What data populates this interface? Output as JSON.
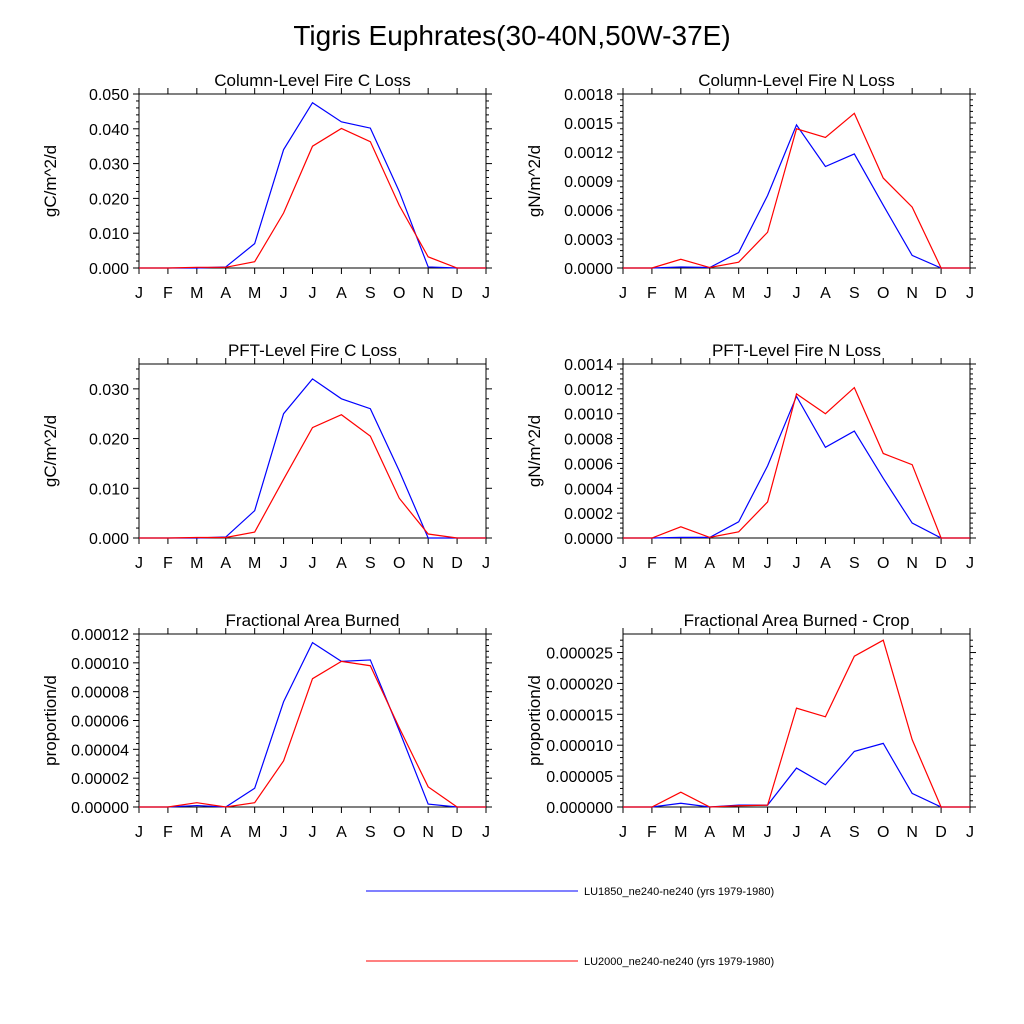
{
  "title": "Tigris Euphrates(30-40N,50W-37E)",
  "chart_data": [
    {
      "type": "line",
      "title": "Column-Level Fire C Loss",
      "ylabel": "gC/m^2/d",
      "categories": [
        "J",
        "F",
        "M",
        "A",
        "M",
        "J",
        "J",
        "A",
        "S",
        "O",
        "N",
        "D",
        "J"
      ],
      "ylim": [
        0,
        0.05
      ],
      "yticks": [
        0,
        0.01,
        0.02,
        0.03,
        0.04,
        0.05
      ],
      "ytick_labels": [
        "0.000",
        "0.010",
        "0.020",
        "0.030",
        "0.040",
        "0.050"
      ],
      "series": [
        {
          "name": "LU1850_ne240-ne240 (yrs 1979-1980)",
          "color": "#0000ff",
          "values": [
            0,
            0,
            0,
            0.0003,
            0.007,
            0.034,
            0.0475,
            0.042,
            0.0402,
            0.022,
            0.0003,
            0,
            0
          ]
        },
        {
          "name": "LU2000_ne240-ne240 (yrs 1979-1980)",
          "color": "#ff0000",
          "values": [
            0,
            0,
            0.0002,
            0.0002,
            0.0018,
            0.0158,
            0.035,
            0.0401,
            0.0363,
            0.018,
            0.0032,
            0,
            0
          ]
        }
      ]
    },
    {
      "type": "line",
      "title": "Column-Level Fire N Loss",
      "ylabel": "gN/m^2/d",
      "categories": [
        "J",
        "F",
        "M",
        "A",
        "M",
        "J",
        "J",
        "A",
        "S",
        "O",
        "N",
        "D",
        "J"
      ],
      "ylim": [
        0,
        0.0018
      ],
      "yticks": [
        0,
        0.0003,
        0.0006,
        0.0009,
        0.0012,
        0.0015,
        0.0018
      ],
      "ytick_labels": [
        "0.0000",
        "0.0003",
        "0.0006",
        "0.0009",
        "0.0012",
        "0.0015",
        "0.0018"
      ],
      "series": [
        {
          "name": "LU1850_ne240-ne240 (yrs 1979-1980)",
          "color": "#0000ff",
          "values": [
            0,
            0,
            1e-05,
            5e-06,
            0.00016,
            0.00075,
            0.00148,
            0.00105,
            0.00118,
            0.00065,
            0.00013,
            0,
            0
          ]
        },
        {
          "name": "LU2000_ne240-ne240 (yrs 1979-1980)",
          "color": "#ff0000",
          "values": [
            0,
            0,
            9e-05,
            5e-06,
            6e-05,
            0.00037,
            0.00144,
            0.00135,
            0.0016,
            0.00093,
            0.00063,
            0,
            0
          ]
        }
      ]
    },
    {
      "type": "line",
      "title": "PFT-Level Fire C Loss",
      "ylabel": "gC/m^2/d",
      "categories": [
        "J",
        "F",
        "M",
        "A",
        "M",
        "J",
        "J",
        "A",
        "S",
        "O",
        "N",
        "D",
        "J"
      ],
      "ylim": [
        0,
        0.035
      ],
      "yticks": [
        0,
        0.01,
        0.02,
        0.03
      ],
      "ytick_labels": [
        "0.000",
        "0.010",
        "0.020",
        "0.030"
      ],
      "series": [
        {
          "name": "LU1850_ne240-ne240 (yrs 1979-1980)",
          "color": "#0000ff",
          "values": [
            0,
            0,
            0,
            0.0002,
            0.0055,
            0.025,
            0.032,
            0.028,
            0.026,
            0.0135,
            0,
            0,
            0
          ]
        },
        {
          "name": "LU2000_ne240-ne240 (yrs 1979-1980)",
          "color": "#ff0000",
          "values": [
            0,
            0,
            0.0001,
            0.0001,
            0.0012,
            0.0118,
            0.0222,
            0.0248,
            0.0205,
            0.008,
            0.0008,
            0,
            0
          ]
        }
      ]
    },
    {
      "type": "line",
      "title": "PFT-Level Fire N Loss",
      "ylabel": "gN/m^2/d",
      "categories": [
        "J",
        "F",
        "M",
        "A",
        "M",
        "J",
        "J",
        "A",
        "S",
        "O",
        "N",
        "D",
        "J"
      ],
      "ylim": [
        0,
        0.0014
      ],
      "yticks": [
        0,
        0.0002,
        0.0004,
        0.0006,
        0.0008,
        0.001,
        0.0012,
        0.0014
      ],
      "ytick_labels": [
        "0.0000",
        "0.0002",
        "0.0004",
        "0.0006",
        "0.0008",
        "0.0010",
        "0.0012",
        "0.0014"
      ],
      "series": [
        {
          "name": "LU1850_ne240-ne240 (yrs 1979-1980)",
          "color": "#0000ff",
          "values": [
            0,
            0,
            5e-06,
            5e-06,
            0.00013,
            0.00058,
            0.00114,
            0.00073,
            0.00086,
            0.00048,
            0.00012,
            0,
            0
          ]
        },
        {
          "name": "LU2000_ne240-ne240 (yrs 1979-1980)",
          "color": "#ff0000",
          "values": [
            0,
            0,
            9e-05,
            5e-06,
            5e-05,
            0.00029,
            0.00116,
            0.001,
            0.00121,
            0.00068,
            0.00059,
            0,
            0
          ]
        }
      ]
    },
    {
      "type": "line",
      "title": "Fractional Area Burned",
      "ylabel": "proportion/d",
      "categories": [
        "J",
        "F",
        "M",
        "A",
        "M",
        "J",
        "J",
        "A",
        "S",
        "O",
        "N",
        "D",
        "J"
      ],
      "ylim": [
        0,
        0.00012
      ],
      "yticks": [
        0,
        2e-05,
        4e-05,
        6e-05,
        8e-05,
        0.0001,
        0.00012
      ],
      "ytick_labels": [
        "0.00000",
        "0.00002",
        "0.00004",
        "0.00006",
        "0.00008",
        "0.00010",
        "0.00012"
      ],
      "series": [
        {
          "name": "LU1850_ne240-ne240 (yrs 1979-1980)",
          "color": "#0000ff",
          "values": [
            0,
            0,
            1e-06,
            0,
            1.3e-05,
            7.3e-05,
            0.000114,
            0.000101,
            0.000102,
            5.3e-05,
            2e-06,
            0,
            0
          ]
        },
        {
          "name": "LU2000_ne240-ne240 (yrs 1979-1980)",
          "color": "#ff0000",
          "values": [
            0,
            0,
            3e-06,
            0,
            3e-06,
            3.2e-05,
            8.9e-05,
            0.000101,
            9.8e-05,
            5.5e-05,
            1.4e-05,
            0,
            0
          ]
        }
      ]
    },
    {
      "type": "line",
      "title": "Fractional Area Burned - Crop",
      "ylabel": "proportion/d",
      "categories": [
        "J",
        "F",
        "M",
        "A",
        "M",
        "J",
        "J",
        "A",
        "S",
        "O",
        "N",
        "D",
        "J"
      ],
      "ylim": [
        0,
        2.8e-05
      ],
      "yticks": [
        0,
        5e-06,
        1e-05,
        1.5e-05,
        2e-05,
        2.5e-05
      ],
      "ytick_labels": [
        "0.000000",
        "0.000005",
        "0.000010",
        "0.000015",
        "0.000020",
        "0.000025"
      ],
      "series": [
        {
          "name": "LU1850_ne240-ne240 (yrs 1979-1980)",
          "color": "#0000ff",
          "values": [
            0,
            0,
            6e-07,
            0,
            3e-07,
            3e-07,
            6.3e-06,
            3.6e-06,
            9e-06,
            1.03e-05,
            2.2e-06,
            0,
            0
          ]
        },
        {
          "name": "LU2000_ne240-ne240 (yrs 1979-1980)",
          "color": "#ff0000",
          "values": [
            0,
            0,
            2.4e-06,
            0,
            2e-07,
            3e-07,
            1.6e-05,
            1.46e-05,
            2.44e-05,
            2.7e-05,
            1.09e-05,
            0,
            0
          ]
        }
      ]
    }
  ],
  "legend": [
    {
      "label": "LU1850_ne240-ne240 (yrs 1979-1980)",
      "color": "#0000ff"
    },
    {
      "label": "LU2000_ne240-ne240 (yrs 1979-1980)",
      "color": "#ff0000"
    }
  ]
}
